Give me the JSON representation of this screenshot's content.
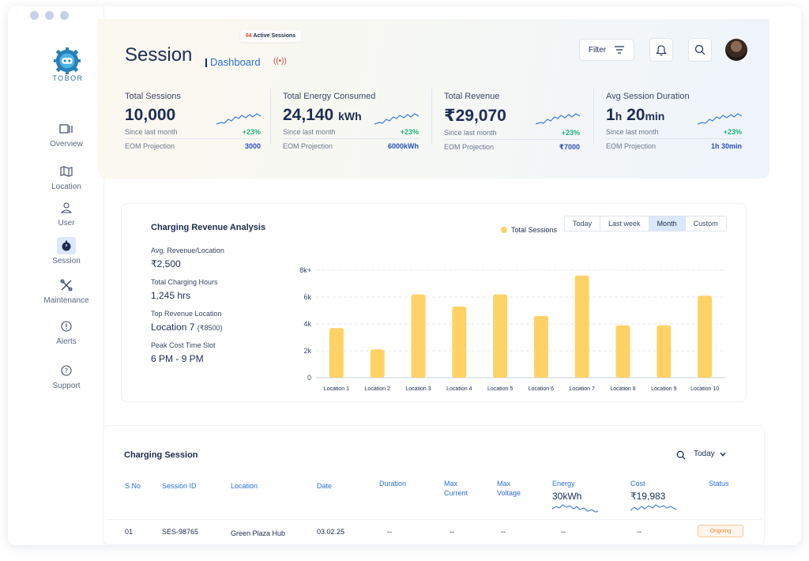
{
  "brand": {
    "name": "TOBOR"
  },
  "sidebar": {
    "items": [
      {
        "label": "Overview"
      },
      {
        "label": "Location"
      },
      {
        "label": "User"
      },
      {
        "label": "Session"
      },
      {
        "label": "Maintenance"
      },
      {
        "label": "Alerts"
      },
      {
        "label": "Support"
      }
    ],
    "active": "Session"
  },
  "header": {
    "title": "Session",
    "subtitle": "Dashboard",
    "badge_count": "64",
    "badge_label": "Active Sessions",
    "filter_label": "Filter"
  },
  "stats": [
    {
      "label": "Total Sessions",
      "value": "10,000",
      "unit": "",
      "since": "Since last month",
      "pct": "+23%",
      "eom_label": "EOM Projection",
      "eom_value": "3000"
    },
    {
      "label": "Total Energy Consumed",
      "value": "24,140",
      "unit": "kWh",
      "since": "Since last month",
      "pct": "+23%",
      "eom_label": "EOM Projection",
      "eom_value": "6000kWh"
    },
    {
      "label": "Total Revenue",
      "value": "₹29,070",
      "unit": "",
      "since": "Since last month",
      "pct": "+23%",
      "eom_label": "EOM Projection",
      "eom_value": "₹7000"
    },
    {
      "label": "Avg Session Duration",
      "value_h": "1",
      "unit_h": "h",
      "value_m": "20",
      "unit_m": "min",
      "since": "Since last month",
      "pct": "+23%",
      "eom_label": "EOM Projection",
      "eom_value": "1h 30min"
    }
  ],
  "analysis": {
    "title": "Charging Revenue Analysis",
    "metrics": [
      {
        "label": "Avg. Revenue/Location",
        "value": "₹2,500"
      },
      {
        "label": "Total Charging Hours",
        "value": "1,245 hrs"
      },
      {
        "label": "Top Revenue Location",
        "value": "Location 7",
        "sub": "(₹8500)"
      },
      {
        "label": "Peak Cost Time Slot",
        "value": "6 PM - 9 PM"
      }
    ],
    "legend": "Total Sessions",
    "ranges": [
      "Today",
      "Last week",
      "Month",
      "Custom"
    ],
    "active_range": "Month"
  },
  "chart_data": {
    "type": "bar",
    "categories": [
      "Location 1",
      "Location 2",
      "Location 3",
      "Location 4",
      "Location 5",
      "Location 6",
      "Location 7",
      "Location 8",
      "Location 9",
      "Location 10"
    ],
    "series": [
      {
        "name": "Total Sessions",
        "values": [
          3700,
          2100,
          6200,
          5300,
          6200,
          4600,
          7600,
          3900,
          3900,
          6100
        ]
      }
    ],
    "y_ticks": [
      "0",
      "2k",
      "4k",
      "6k",
      "8k+"
    ],
    "ylim": [
      0,
      8000
    ],
    "grid": true,
    "bar_color": "#ffd266"
  },
  "sessions": {
    "title": "Charging Session",
    "filter": "Today",
    "columns": {
      "sno": "S.No",
      "session_id": "Session ID",
      "location": "Location",
      "date": "Date",
      "duration": "Duration",
      "max_current_1": "Max",
      "max_current_2": "Current",
      "max_voltage_1": "Max",
      "max_voltage_2": "Voltage",
      "energy": "Energy",
      "energy_total": "30kWh",
      "cost": "Cost",
      "cost_total": "₹19,983",
      "status": "Status"
    },
    "rows": [
      {
        "sno": "01",
        "session_id": "SES-98765",
        "location": "Green Plaza Hub",
        "date": "03.02.25",
        "duration": "--",
        "max_current": "--",
        "max_voltage": "--",
        "energy": "--",
        "cost": "--",
        "status": "Ongoing"
      }
    ]
  },
  "colors": {
    "accent": "#2f6fd6",
    "positive": "#22b07d",
    "bar": "#ffd266",
    "live": "#e0463c"
  }
}
